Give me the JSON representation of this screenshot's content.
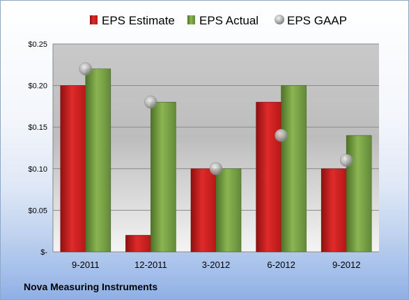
{
  "company": "Nova Measuring Instruments",
  "colors": {
    "estimate": "#c81e1e",
    "actual": "#6f9a3a",
    "gaap": "#b0b0b0"
  },
  "chart_data": {
    "type": "bar",
    "categories": [
      "9-2011",
      "12-2011",
      "3-2012",
      "6-2012",
      "9-2012"
    ],
    "series": [
      {
        "name": "EPS Estimate",
        "type": "bar",
        "values": [
          0.2,
          0.02,
          0.1,
          0.18,
          0.1
        ]
      },
      {
        "name": "EPS Actual",
        "type": "bar",
        "values": [
          0.22,
          0.18,
          0.1,
          0.2,
          0.14
        ]
      },
      {
        "name": "EPS GAAP",
        "type": "scatter",
        "values": [
          0.22,
          0.18,
          0.1,
          0.14,
          0.11
        ]
      }
    ],
    "ylim": [
      0,
      0.25
    ],
    "yticks": [
      0,
      0.05,
      0.1,
      0.15,
      0.2,
      0.25
    ],
    "ytick_labels": [
      "$-",
      "$0.05",
      "$0.10",
      "$0.15",
      "$0.20",
      "$0.25"
    ],
    "grid": true,
    "legend": "top"
  }
}
